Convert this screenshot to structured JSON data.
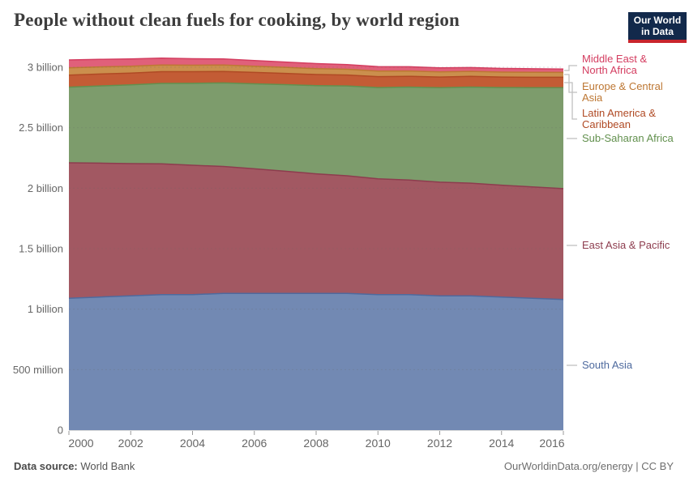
{
  "header": {
    "title": "People without clean fuels for cooking, by world region",
    "logo_line1": "Our World",
    "logo_line2": "in Data",
    "logo_bg": "#12294b",
    "logo_stripe": "#c9252d"
  },
  "chart_data": {
    "type": "area",
    "stacked": true,
    "title": "People without clean fuels for cooking, by world region",
    "unit": "people (billions)",
    "x": [
      2000,
      2001,
      2002,
      2003,
      2004,
      2005,
      2006,
      2007,
      2008,
      2009,
      2010,
      2011,
      2012,
      2013,
      2014,
      2015,
      2016
    ],
    "xticks": [
      2000,
      2002,
      2004,
      2006,
      2008,
      2010,
      2012,
      2014,
      2016
    ],
    "yticks": [
      {
        "value": 0,
        "label": "0"
      },
      {
        "value": 0.5,
        "label": "500 million"
      },
      {
        "value": 1,
        "label": "1 billion"
      },
      {
        "value": 1.5,
        "label": "1.5 billion"
      },
      {
        "value": 2,
        "label": "2 billion"
      },
      {
        "value": 2.5,
        "label": "2.5 billion"
      },
      {
        "value": 3,
        "label": "3 billion"
      }
    ],
    "ylim": [
      0,
      3.08
    ],
    "grid": "dashed-horizontal",
    "legend_position": "right",
    "stack_order": "bottom-to-top",
    "series": [
      {
        "name": "South Asia",
        "slug": "south-asia",
        "fill": "#7289b3",
        "line": "#4e6a9e",
        "values": [
          1.09,
          1.1,
          1.11,
          1.12,
          1.12,
          1.13,
          1.13,
          1.13,
          1.13,
          1.13,
          1.12,
          1.12,
          1.11,
          1.11,
          1.1,
          1.09,
          1.08
        ]
      },
      {
        "name": "East Asia & Pacific",
        "slug": "east-asia-pacific",
        "fill": "#a25862",
        "line": "#8d3c4e",
        "values": [
          1.12,
          1.107,
          1.093,
          1.082,
          1.07,
          1.05,
          1.03,
          1.01,
          0.989,
          0.973,
          0.957,
          0.948,
          0.94,
          0.932,
          0.925,
          0.92,
          0.916
        ]
      },
      {
        "name": "Sub-Saharan Africa",
        "slug": "sub-saharan-africa",
        "fill": "#7d9c6c",
        "line": "#62904e",
        "values": [
          0.625,
          0.638,
          0.651,
          0.664,
          0.677,
          0.69,
          0.703,
          0.716,
          0.729,
          0.742,
          0.755,
          0.768,
          0.781,
          0.794,
          0.807,
          0.821,
          0.835
        ]
      },
      {
        "name": "Latin America & Caribbean",
        "slug": "latin-america-caribbean",
        "fill": "#c35c35",
        "line": "#b04a24",
        "values": [
          0.1,
          0.099,
          0.098,
          0.097,
          0.096,
          0.095,
          0.094,
          0.093,
          0.092,
          0.091,
          0.09,
          0.089,
          0.088,
          0.088,
          0.087,
          0.086,
          0.086
        ]
      },
      {
        "name": "Europe & Central Asia",
        "slug": "europe-central-asia",
        "fill": "#cb8f4d",
        "line": "#bd7733",
        "values": [
          0.06,
          0.059,
          0.057,
          0.056,
          0.054,
          0.053,
          0.051,
          0.05,
          0.048,
          0.047,
          0.046,
          0.044,
          0.043,
          0.042,
          0.041,
          0.041,
          0.04
        ]
      },
      {
        "name": "Middle East & North Africa",
        "slug": "middle-east-north-africa",
        "fill": "#e0607a",
        "line": "#d43d60",
        "values": [
          0.065,
          0.062,
          0.059,
          0.056,
          0.053,
          0.05,
          0.047,
          0.044,
          0.042,
          0.039,
          0.037,
          0.035,
          0.033,
          0.031,
          0.03,
          0.029,
          0.028
        ]
      }
    ]
  },
  "legend": {
    "items": [
      {
        "label": "Middle East &\nNorth Africa",
        "color": "#d43d60",
        "slug": "middle-east-north-africa"
      },
      {
        "label": "Europe & Central\nAsia",
        "color": "#bd7733",
        "slug": "europe-central-asia"
      },
      {
        "label": "Latin America &\nCaribbean",
        "color": "#b04a24",
        "slug": "latin-america-caribbean"
      },
      {
        "label": "Sub-Saharan Africa",
        "color": "#62904e",
        "slug": "sub-saharan-africa"
      },
      {
        "label": "East Asia & Pacific",
        "color": "#8d3c4e",
        "slug": "east-asia-pacific"
      },
      {
        "label": "South Asia",
        "color": "#4e6a9e",
        "slug": "south-asia"
      }
    ]
  },
  "footer": {
    "source_label": "Data source:",
    "source_value": " World Bank",
    "link": "OurWorldinData.org/energy",
    "separator": " | ",
    "license": "CC BY"
  }
}
